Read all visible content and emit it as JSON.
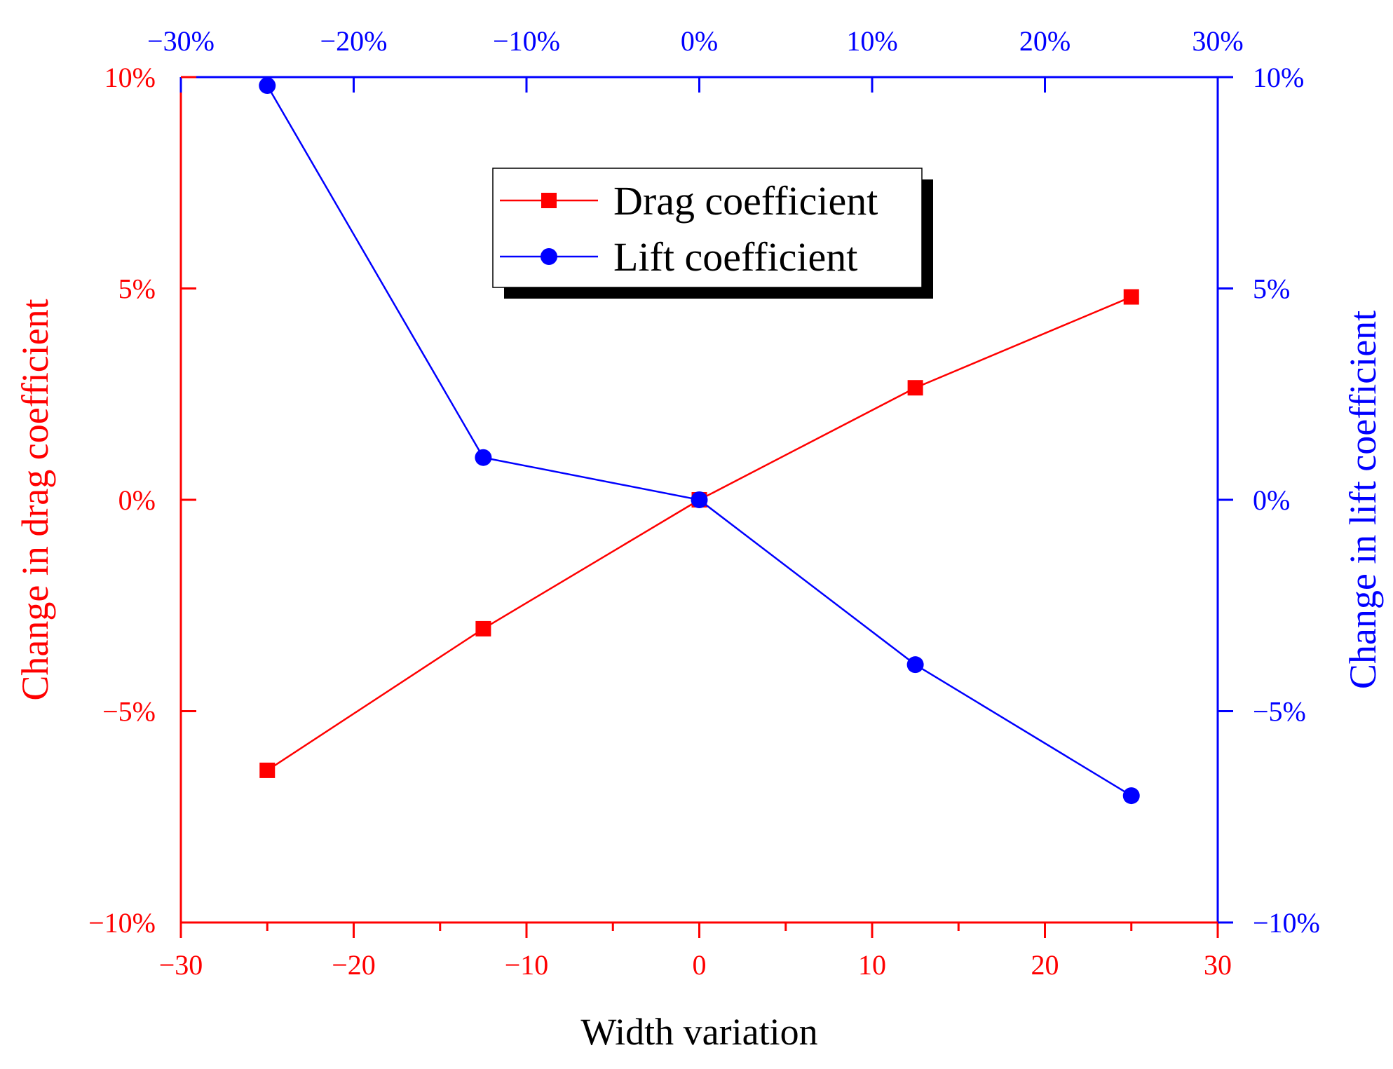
{
  "chart_data": {
    "type": "line",
    "xlabel": "Width variation",
    "ylabel_left": "Change in drag coefficient",
    "ylabel_right": "Change in lift coefficient",
    "x": [
      -25,
      -12.5,
      0,
      12.5,
      25
    ],
    "xlim": [
      -30,
      30
    ],
    "ylim": [
      -10,
      10
    ],
    "x_ticks_bottom": [
      {
        "value": -30,
        "label": "−30"
      },
      {
        "value": -20,
        "label": "−20"
      },
      {
        "value": -10,
        "label": "−10"
      },
      {
        "value": 0,
        "label": "0"
      },
      {
        "value": 10,
        "label": "10"
      },
      {
        "value": 20,
        "label": "20"
      },
      {
        "value": 30,
        "label": "30"
      }
    ],
    "x_ticks_top": [
      {
        "value": -30,
        "label": "−30%"
      },
      {
        "value": -20,
        "label": "−20%"
      },
      {
        "value": -10,
        "label": "−10%"
      },
      {
        "value": 0,
        "label": "0%"
      },
      {
        "value": 10,
        "label": "10%"
      },
      {
        "value": 20,
        "label": "20%"
      },
      {
        "value": 30,
        "label": "30%"
      }
    ],
    "y_ticks_left": [
      {
        "value": 10,
        "label": "10%"
      },
      {
        "value": 5,
        "label": "5%"
      },
      {
        "value": 0,
        "label": "0%"
      },
      {
        "value": -5,
        "label": "−5%"
      },
      {
        "value": -10,
        "label": "−10%"
      }
    ],
    "y_ticks_right": [
      {
        "value": 10,
        "label": "10%"
      },
      {
        "value": 5,
        "label": "5%"
      },
      {
        "value": 0,
        "label": "0%"
      },
      {
        "value": -5,
        "label": "−5%"
      },
      {
        "value": -10,
        "label": "−10%"
      }
    ],
    "series": [
      {
        "name": "Drag coefficient",
        "axis": "left",
        "marker": "square",
        "color": "#ff0000",
        "values": [
          -6.4,
          -3.05,
          0,
          2.65,
          4.8
        ]
      },
      {
        "name": "Lift coefficient",
        "axis": "right",
        "marker": "circle",
        "color": "#0000ff",
        "values": [
          9.8,
          1.0,
          0,
          -3.9,
          -7.0
        ]
      }
    ],
    "legend_position": "top-center",
    "grid": false,
    "colors": {
      "left_axis": "#ff0000",
      "right_axis": "#0000ff",
      "bottom_axis": "#ff0000",
      "top_axis": "#0000ff",
      "xlabel": "#000000"
    }
  }
}
